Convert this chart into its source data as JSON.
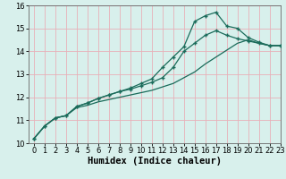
{
  "xlabel": "Humidex (Indice chaleur)",
  "ylabel": "",
  "bg_color": "#d8f0ec",
  "grid_color": "#e8b0b8",
  "line_color": "#1a6b5a",
  "x": [
    0,
    1,
    2,
    3,
    4,
    5,
    6,
    7,
    8,
    9,
    10,
    11,
    12,
    13,
    14,
    15,
    16,
    17,
    18,
    19,
    20,
    21,
    22,
    23
  ],
  "line1": [
    10.2,
    10.75,
    11.1,
    11.2,
    11.6,
    11.75,
    11.95,
    12.1,
    12.25,
    12.4,
    12.6,
    12.8,
    13.3,
    13.75,
    14.2,
    15.3,
    15.55,
    15.7,
    15.1,
    15.0,
    14.6,
    14.4,
    14.25,
    14.25
  ],
  "line2": [
    10.2,
    10.75,
    11.1,
    11.2,
    11.6,
    11.75,
    11.95,
    12.1,
    12.25,
    12.35,
    12.5,
    12.65,
    12.85,
    13.3,
    14.0,
    14.35,
    14.7,
    14.9,
    14.7,
    14.55,
    14.45,
    14.35,
    14.25,
    14.25
  ],
  "line3": [
    10.2,
    10.75,
    11.1,
    11.2,
    11.55,
    11.65,
    11.8,
    11.9,
    12.0,
    12.1,
    12.2,
    12.3,
    12.45,
    12.6,
    12.85,
    13.1,
    13.45,
    13.75,
    14.05,
    14.35,
    14.5,
    14.35,
    14.25,
    14.25
  ],
  "ylim": [
    10,
    16
  ],
  "xlim": [
    -0.5,
    23
  ],
  "yticks": [
    10,
    11,
    12,
    13,
    14,
    15,
    16
  ],
  "xticks": [
    0,
    1,
    2,
    3,
    4,
    5,
    6,
    7,
    8,
    9,
    10,
    11,
    12,
    13,
    14,
    15,
    16,
    17,
    18,
    19,
    20,
    21,
    22,
    23
  ],
  "marker_size": 3,
  "line_width": 0.9,
  "xlabel_fontsize": 7.5,
  "tick_fontsize": 6
}
